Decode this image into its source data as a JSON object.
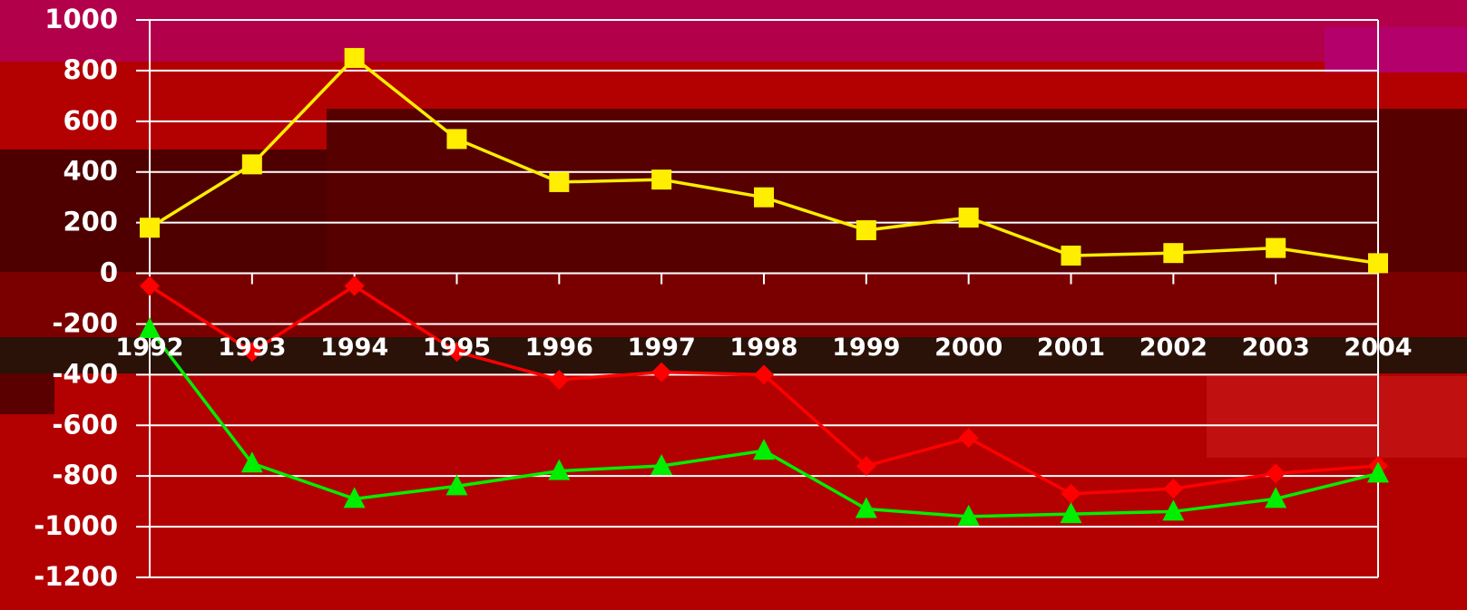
{
  "chart_data": {
    "type": "line",
    "categories": [
      "1992",
      "1993",
      "1994",
      "1995",
      "1996",
      "1997",
      "1998",
      "1999",
      "2000",
      "2001",
      "2002",
      "2003",
      "2004"
    ],
    "series": [
      {
        "color": "#ffee00",
        "marker": "square",
        "values": [
          180,
          430,
          850,
          530,
          360,
          370,
          300,
          170,
          220,
          70,
          80,
          100,
          40
        ]
      },
      {
        "color": "#ff0000",
        "marker": "diamond",
        "values": [
          -50,
          -310,
          -50,
          -310,
          -420,
          -390,
          -400,
          -760,
          -650,
          -870,
          -850,
          -790,
          -760
        ]
      },
      {
        "color": "#00ee00",
        "marker": "triangle",
        "values": [
          -220,
          -750,
          -890,
          -840,
          -780,
          -760,
          -700,
          -930,
          -960,
          -950,
          -940,
          -890,
          -790
        ]
      }
    ],
    "ylim": [
      -1200,
      1000
    ],
    "yticks": [
      -1200,
      -1000,
      -800,
      -600,
      -400,
      -200,
      0,
      200,
      400,
      600,
      800,
      1000
    ],
    "grid": true
  }
}
